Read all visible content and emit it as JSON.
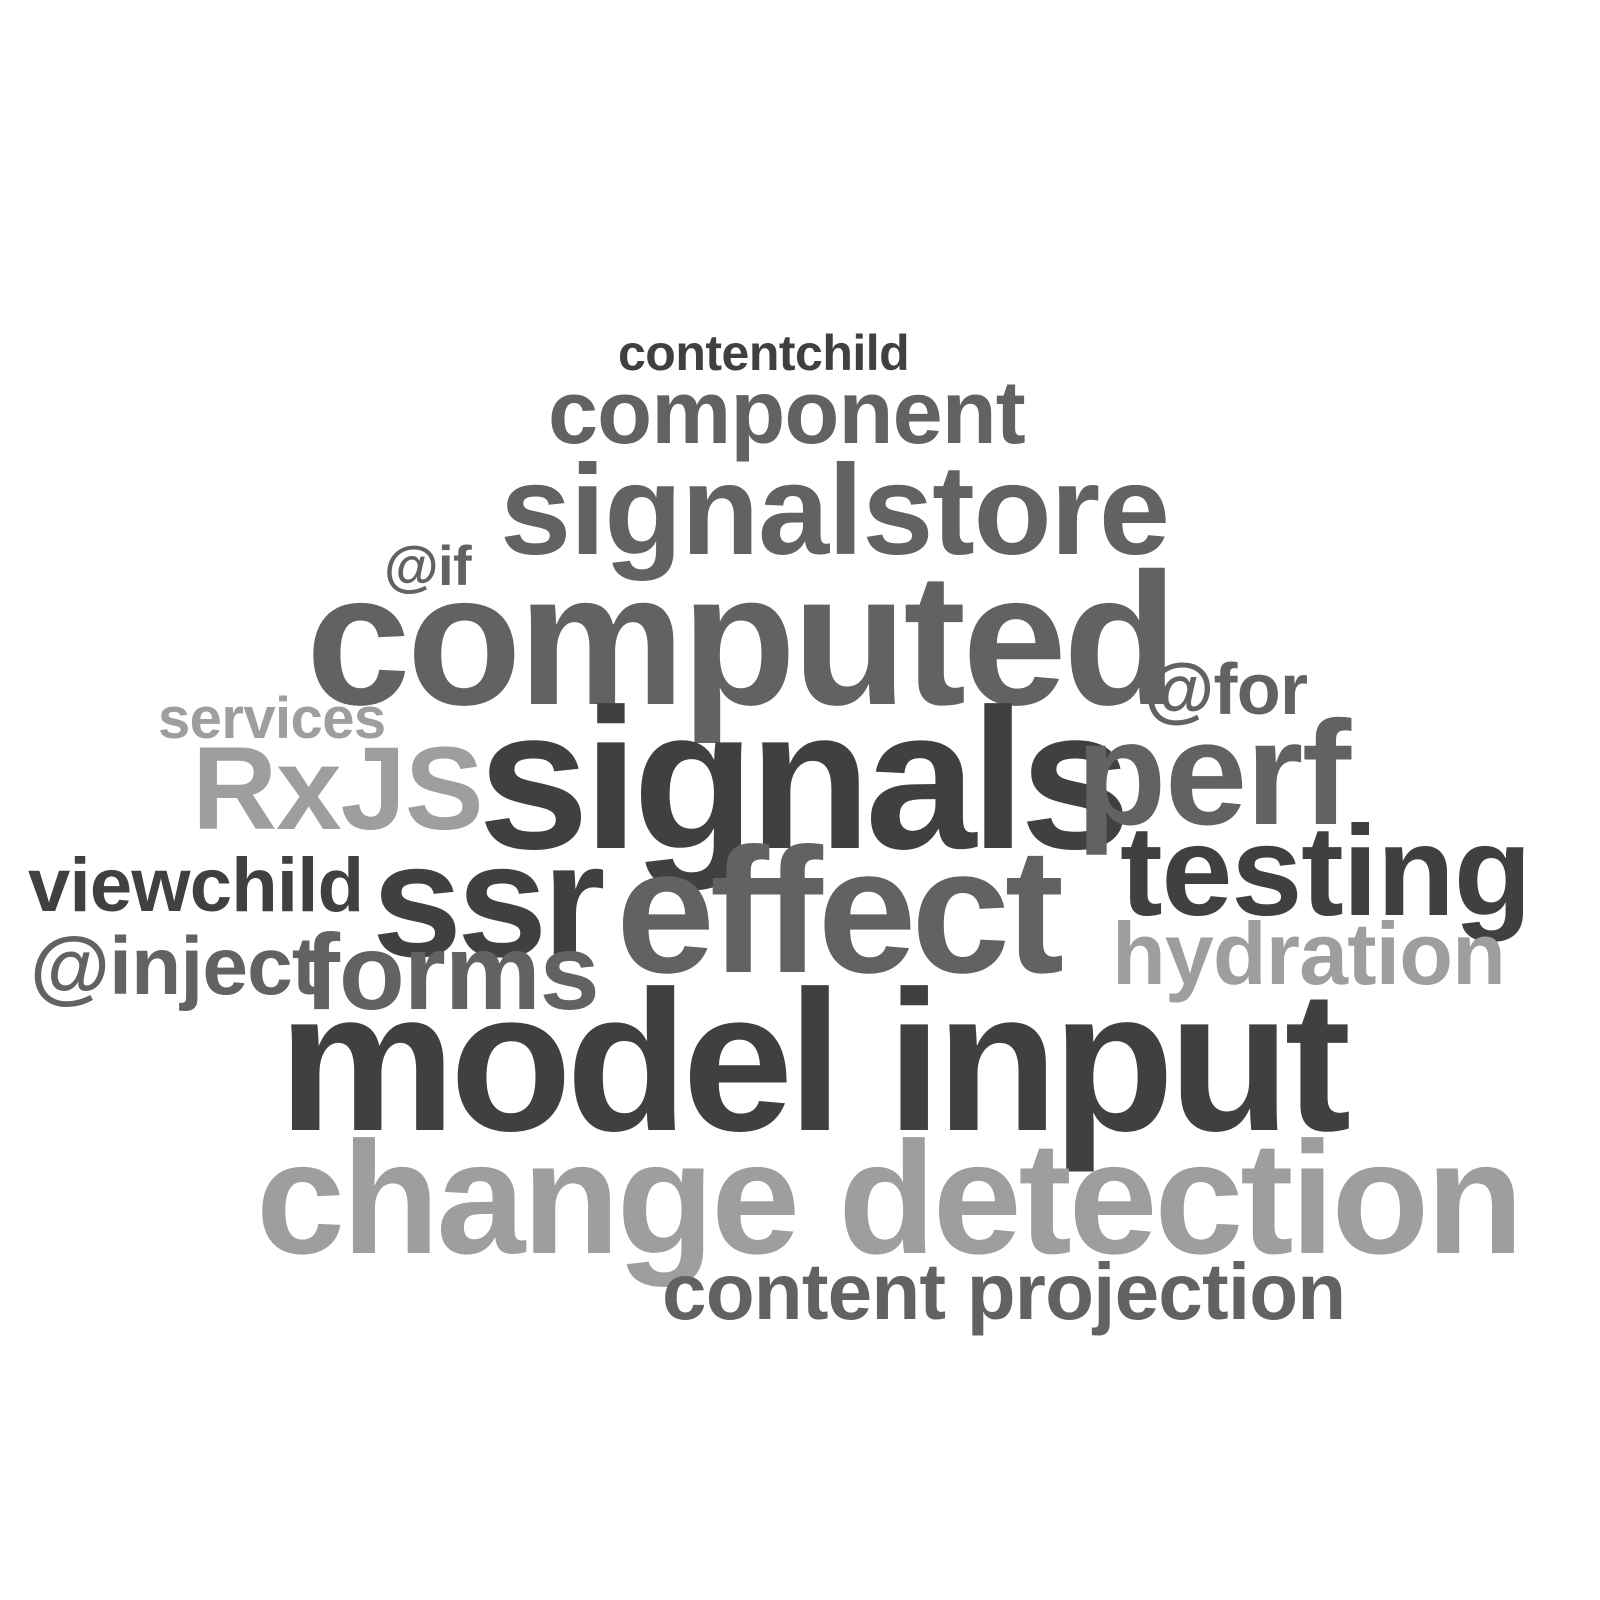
{
  "cloud": {
    "words": {
      "contentchild": {
        "text": "contentchild",
        "color": "#404040"
      },
      "component": {
        "text": "component",
        "color": "#626262"
      },
      "signalstore": {
        "text": "signalstore",
        "color": "#626262"
      },
      "at_if": {
        "text": "@if",
        "color": "#626262"
      },
      "computed": {
        "text": "computed",
        "color": "#626262"
      },
      "at_for": {
        "text": "@for",
        "color": "#626262"
      },
      "services": {
        "text": "services",
        "color": "#9e9e9e"
      },
      "rxjs": {
        "text": "RxJS",
        "color": "#9e9e9e"
      },
      "signals": {
        "text": "signals",
        "color": "#404040"
      },
      "perf": {
        "text": "perf",
        "color": "#626262"
      },
      "testing": {
        "text": "testing",
        "color": "#404040"
      },
      "viewchild": {
        "text": "viewchild",
        "color": "#404040"
      },
      "ssr": {
        "text": "ssr",
        "color": "#404040"
      },
      "effect": {
        "text": "effect",
        "color": "#626262"
      },
      "hydration": {
        "text": "hydration",
        "color": "#9e9e9e"
      },
      "at_inject": {
        "text": "@inject",
        "color": "#626262"
      },
      "forms": {
        "text": "forms",
        "color": "#626262"
      },
      "model_input": {
        "text": "model input",
        "color": "#404040"
      },
      "change_detection": {
        "text": "change detection",
        "color": "#9e9e9e"
      },
      "content_projection": {
        "text": "content projection",
        "color": "#626262"
      }
    }
  }
}
